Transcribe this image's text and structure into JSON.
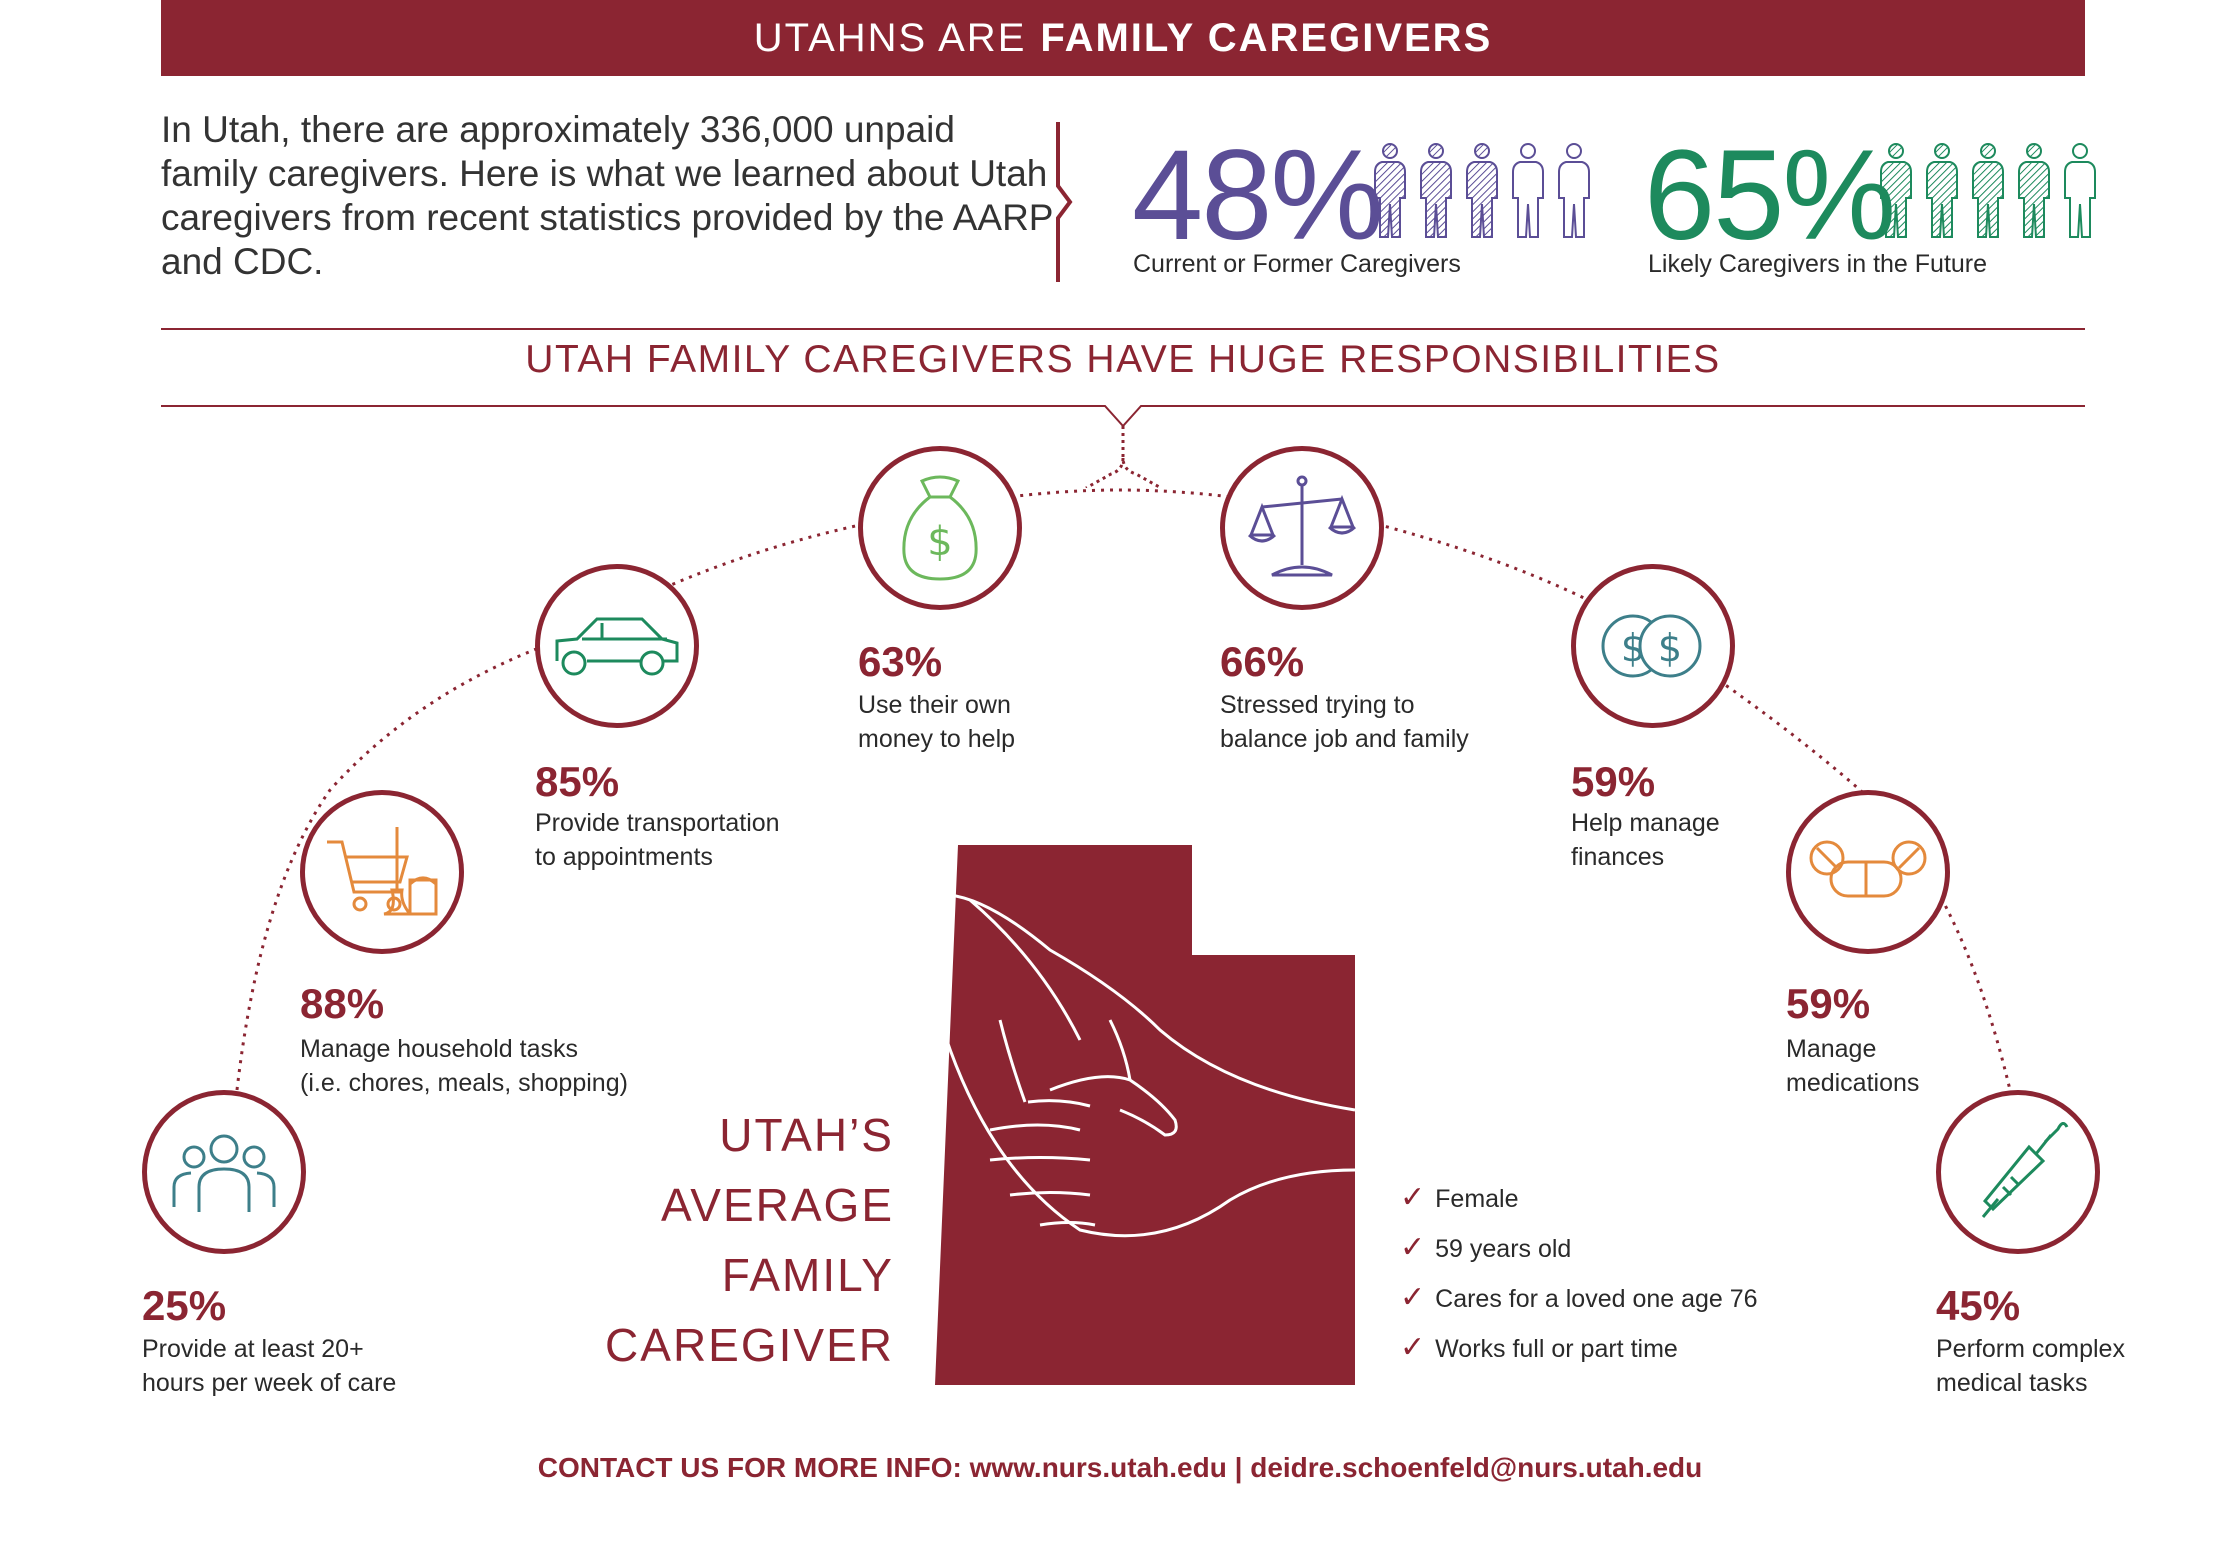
{
  "header": {
    "title_light": "UTAHNS ARE",
    "title_bold": "FAMILY CAREGIVERS"
  },
  "intro": "In Utah, there are approximately 336,000 unpaid family caregivers.  Here is what we learned about Utah caregivers from recent statistics provided by the AARP and CDC.",
  "stats": [
    {
      "value": "48%",
      "label": "Current or Former Caregivers",
      "color": "#5b4e96"
    },
    {
      "value": "65%",
      "label": "Likely Caregivers in the Future",
      "color": "#1d8a5d"
    }
  ],
  "responsibilities_title": "UTAH FAMILY CAREGIVERS HAVE HUGE RESPONSIBILITIES",
  "responsibilities": [
    {
      "pct": "25%",
      "line1": "Provide at least 20+",
      "line2": "hours per week of care",
      "icon": "people-group-icon"
    },
    {
      "pct": "88%",
      "line1": "Manage household tasks",
      "line2": "(i.e. chores, meals, shopping)",
      "icon": "shopping-cart-icon"
    },
    {
      "pct": "85%",
      "line1": "Provide transportation",
      "line2": "to appointments",
      "icon": "car-icon"
    },
    {
      "pct": "63%",
      "line1": "Use their own",
      "line2": "money to help",
      "icon": "money-bag-icon"
    },
    {
      "pct": "66%",
      "line1": "Stressed trying to",
      "line2": "balance job and family",
      "icon": "scales-icon"
    },
    {
      "pct": "59%",
      "line1": "Help manage",
      "line2": "finances",
      "icon": "coins-icon"
    },
    {
      "pct": "59%",
      "line1": "Manage",
      "line2": "medications",
      "icon": "pills-icon"
    },
    {
      "pct": "45%",
      "line1": "Perform complex",
      "line2": "medical tasks",
      "icon": "syringe-icon"
    }
  ],
  "average": {
    "title_lines": [
      "UTAH’S",
      "AVERAGE",
      "FAMILY",
      "CAREGIVER"
    ],
    "traits": [
      "Female",
      "59 years old",
      "Cares for a loved one age 76",
      "Works full or part time"
    ]
  },
  "contact": "CONTACT US FOR MORE INFO: www.nurs.utah.edu | deidre.schoenfeld@nurs.utah.edu",
  "colors": {
    "brand": "#8b2532",
    "purple": "#5b4e96",
    "green": "#1d8a5d",
    "orange": "#e48a3c",
    "teal": "#3d7f8a"
  }
}
